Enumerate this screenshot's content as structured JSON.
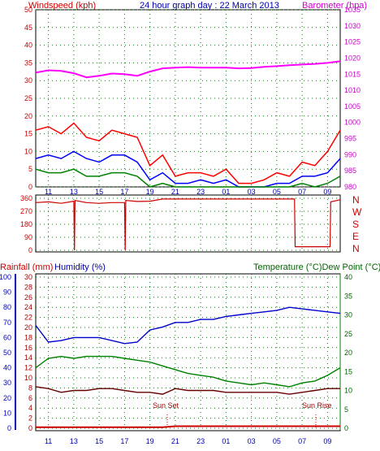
{
  "header": {
    "left_label": "Windspeed (kph)",
    "title": "24 hour graph day : 22 March 2013",
    "right_label": "Barometer (hpa)"
  },
  "mid_header": {
    "left_label": "Rainfall (mm)",
    "humidity_label": "Humidity (%)",
    "right_label": "Temperature (°C)Dew Point (°C)"
  },
  "annotations": {
    "sun_set": "Sun Set",
    "sun_rise": "Sun Rise"
  },
  "colors": {
    "wind_gust": "#ff0000",
    "wind_avg": "#0000ff",
    "wind_green": "#008000",
    "barometer": "#ff00ff",
    "direction": "#cc0000",
    "humidity": "#0000cc",
    "temperature": "#008000",
    "dewpoint": "#660000",
    "rainfall": "#cc0000",
    "left_axis_red": "#cc0000",
    "axis_green": "#006600",
    "axis_blue": "#0000aa"
  },
  "chart_data": [
    {
      "type": "line",
      "x_ticks": [
        "11",
        "13",
        "15",
        "17",
        "19",
        "21",
        "23",
        "01",
        "03",
        "05",
        "07",
        "09"
      ],
      "x_hours": [
        10,
        11,
        12,
        13,
        14,
        15,
        16,
        17,
        18,
        19,
        20,
        21,
        22,
        23,
        24,
        25,
        26,
        27,
        28,
        29,
        30,
        31,
        32,
        33,
        34
      ],
      "y_left_ticks": [
        "0",
        "5",
        "10",
        "15",
        "20",
        "25",
        "30",
        "35",
        "40",
        "45",
        "50"
      ],
      "ylim_left": [
        0,
        50
      ],
      "y_right_ticks": [
        "980",
        "985",
        "990",
        "995",
        "1000",
        "1005",
        "1010",
        "1015",
        "1020",
        "1025",
        "1030",
        "1035"
      ],
      "ylim_right": [
        980,
        1035
      ],
      "series": [
        {
          "name": "Windspeed",
          "color_key": "wind_gust",
          "values": [
            16,
            17,
            15,
            18,
            14,
            13,
            16,
            15,
            14,
            6,
            9,
            3,
            4,
            4,
            3,
            5,
            1,
            1,
            2,
            4,
            3,
            7,
            6,
            10,
            16
          ]
        },
        {
          "name": "Windspeed avg",
          "color_key": "wind_avg",
          "values": [
            8,
            9,
            8,
            10,
            8,
            7,
            9,
            9,
            7,
            2,
            4,
            1,
            1,
            2,
            1,
            2,
            0,
            0,
            0,
            1,
            1,
            3,
            3,
            4,
            8
          ]
        },
        {
          "name": "Wind low",
          "color_key": "wind_green",
          "values": [
            5,
            4,
            4,
            5,
            3,
            3,
            4,
            4,
            3,
            0,
            1,
            0,
            0,
            0,
            0,
            0,
            0,
            0,
            0,
            0,
            0,
            1,
            0,
            1,
            3
          ]
        },
        {
          "name": "Barometer",
          "color_key": "barometer",
          "values": [
            1015.5,
            1016.2,
            1016.0,
            1015.3,
            1014.0,
            1014.5,
            1015.2,
            1015.0,
            1014.5,
            1015.8,
            1016.8,
            1017.0,
            1017.2,
            1017.0,
            1017.0,
            1017.0,
            1016.8,
            1016.9,
            1017.3,
            1017.5,
            1017.8,
            1018.0,
            1018.2,
            1018.5,
            1019.0
          ]
        }
      ]
    },
    {
      "type": "line",
      "y_ticks": [
        "0",
        "90",
        "180",
        "270",
        "360"
      ],
      "ylim": [
        0,
        360
      ],
      "right_labels": [
        "N",
        "W",
        "S",
        "E",
        "N"
      ],
      "series": [
        {
          "name": "Direction",
          "color_key": "direction",
          "points": [
            [
              10,
              330
            ],
            [
              11,
              335
            ],
            [
              12,
              325
            ],
            [
              13,
              340
            ],
            [
              13.05,
              0
            ],
            [
              13.1,
              345
            ],
            [
              14,
              330
            ],
            [
              15,
              325
            ],
            [
              16,
              330
            ],
            [
              17,
              330
            ],
            [
              17.05,
              0
            ],
            [
              17.1,
              345
            ],
            [
              18,
              338
            ],
            [
              19,
              340
            ],
            [
              20,
              355
            ],
            [
              21,
              355
            ],
            [
              22,
              355
            ],
            [
              23,
              355
            ],
            [
              24,
              355
            ],
            [
              25,
              355
            ],
            [
              26,
              355
            ],
            [
              27,
              355
            ],
            [
              28,
              355
            ],
            [
              29,
              355
            ],
            [
              30,
              355
            ],
            [
              30.4,
              355
            ],
            [
              30.45,
              25
            ],
            [
              31,
              25
            ],
            [
              32,
              25
            ],
            [
              33,
              25
            ],
            [
              33.2,
              25
            ],
            [
              33.25,
              335
            ],
            [
              34,
              350
            ]
          ]
        }
      ]
    },
    {
      "type": "line",
      "y_left_outer_ticks": [
        "0",
        "10",
        "20",
        "30",
        "40",
        "50",
        "60",
        "70",
        "80",
        "90",
        "100"
      ],
      "y_left_inner_ticks": [
        "0",
        "2",
        "4",
        "6",
        "8",
        "10",
        "12",
        "14",
        "16",
        "18",
        "20",
        "22",
        "24",
        "26",
        "28",
        "30"
      ],
      "y_right_ticks": [
        "0",
        "5",
        "10",
        "15",
        "20",
        "25",
        "30",
        "35",
        "40"
      ],
      "ylim_humidity": [
        0,
        100
      ],
      "ylim_temperature": [
        0,
        40
      ],
      "series": [
        {
          "name": "Humidity (%)",
          "color_key": "humidity",
          "values": [
            68,
            57,
            58,
            60,
            60,
            60,
            58,
            56,
            57,
            65,
            67,
            70,
            70,
            72,
            72,
            74,
            75,
            76,
            77,
            78,
            80,
            79,
            78,
            77,
            76
          ]
        },
        {
          "name": "Temperature (°C)",
          "color_key": "temperature",
          "values": [
            16,
            18.5,
            19,
            18.5,
            19,
            19,
            19,
            18.5,
            18,
            17.5,
            16.5,
            15.5,
            14.5,
            14,
            13.5,
            12.5,
            12,
            11.5,
            12,
            11.5,
            11,
            12,
            12.5,
            14,
            16
          ]
        },
        {
          "name": "Dew Point (°C)",
          "color_key": "dewpoint",
          "values": [
            11,
            10.5,
            9.5,
            10,
            10,
            10.5,
            10.5,
            10,
            9.5,
            9.5,
            9,
            10.5,
            10,
            10,
            10,
            9.5,
            9.5,
            9.5,
            9.5,
            9.5,
            9,
            9.5,
            10,
            10.5,
            10.5
          ]
        },
        {
          "name": "Rainfall (mm)",
          "color_key": "rainfall",
          "values": [
            0.2,
            0.2,
            0.2,
            0.2,
            0.2,
            0.2,
            0.2,
            0.2,
            0.2,
            0.2,
            0.2,
            0.4,
            0.4,
            0.4,
            0.4,
            0.4,
            0.4,
            0.4,
            0.4,
            0.4,
            0.4,
            0.4,
            0.4,
            0.4,
            0.4
          ]
        }
      ]
    }
  ]
}
